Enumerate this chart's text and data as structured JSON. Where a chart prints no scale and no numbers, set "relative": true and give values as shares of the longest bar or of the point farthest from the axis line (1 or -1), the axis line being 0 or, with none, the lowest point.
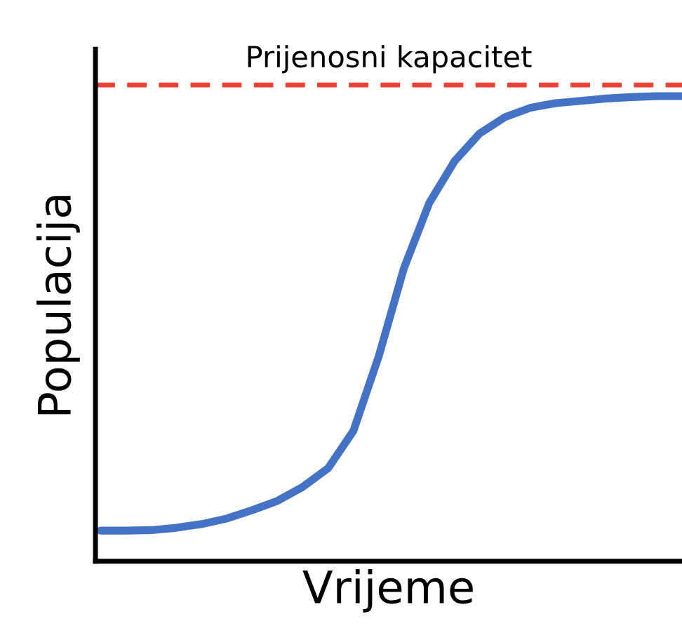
{
  "chart_data": {
    "type": "line",
    "relative": true,
    "xlabel": "Vrijeme",
    "ylabel": "Populacija",
    "categories": [
      null,
      null,
      null,
      null,
      null,
      null,
      null,
      null,
      null,
      null,
      null,
      null,
      null,
      null,
      null,
      null,
      null,
      null,
      null,
      null,
      null,
      null,
      null,
      null
    ],
    "series": [
      {
        "color": "#4472c4",
        "values": [
          0.066,
          0.066,
          0.067,
          0.072,
          0.08,
          0.092,
          0.11,
          0.13,
          0.16,
          0.2,
          0.28,
          0.44,
          0.63,
          0.77,
          0.86,
          0.92,
          0.955,
          0.975,
          0.985,
          0.99,
          0.995,
          0.998,
          1.0,
          1.0
        ]
      }
    ],
    "ref_lines": [
      {
        "axis": "y",
        "value": 1.024,
        "label": "Prijenosni kapacitet",
        "color": "#ee4035",
        "line_style": "dashed"
      }
    ],
    "legend": false,
    "tick_labels": false,
    "marker": "none",
    "line_style": "solid"
  }
}
